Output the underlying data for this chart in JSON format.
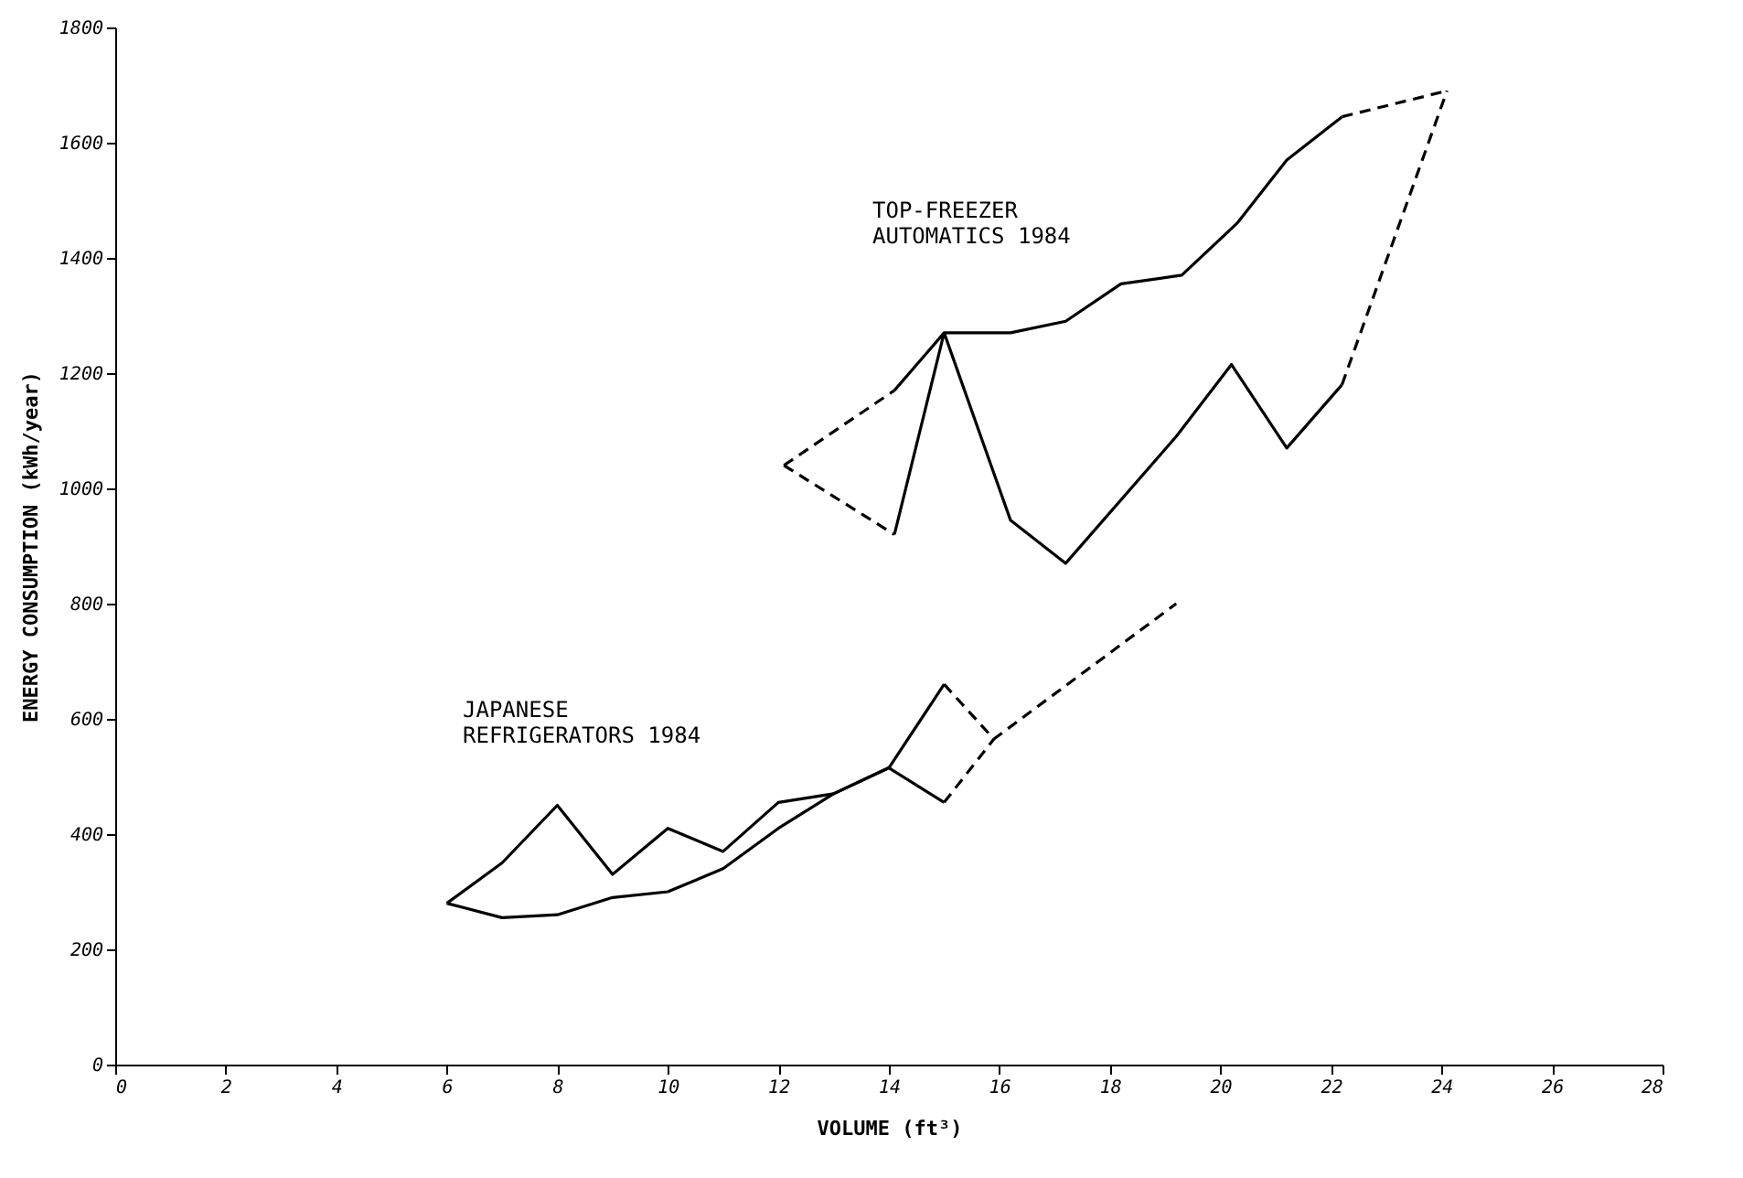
{
  "chart_data": {
    "type": "line",
    "xlabel": "VOLUME (ft³)",
    "ylabel": "ENERGY CONSUMPTION (kWh/year)",
    "xlim": [
      0,
      28
    ],
    "xticks": [
      0,
      2,
      4,
      6,
      8,
      10,
      12,
      14,
      16,
      18,
      20,
      22,
      24,
      26,
      28
    ],
    "ylim": [
      0,
      1800
    ],
    "yticks": [
      0,
      200,
      400,
      600,
      800,
      1000,
      1200,
      1400,
      1600,
      1800
    ],
    "grid": false,
    "marker": "none",
    "series": [
      {
        "color": "#000000",
        "line_style": "solid",
        "x": [
          6,
          7,
          8,
          9,
          10,
          11,
          12,
          13,
          14,
          15
        ],
        "values": [
          280,
          350,
          450,
          330,
          410,
          370,
          455,
          470,
          515,
          660
        ]
      },
      {
        "color": "#000000",
        "line_style": "solid",
        "x": [
          6,
          7,
          8,
          9,
          10,
          11,
          12,
          13,
          14,
          15
        ],
        "values": [
          280,
          255,
          260,
          290,
          300,
          340,
          410,
          470,
          515,
          455
        ]
      },
      {
        "color": "#000000",
        "line_style": "dashed",
        "x": [
          15,
          15.9,
          19.2
        ],
        "values": [
          660,
          565,
          800
        ]
      },
      {
        "color": "#000000",
        "line_style": "dashed",
        "x": [
          15,
          15.9
        ],
        "values": [
          455,
          565
        ]
      },
      {
        "color": "#000000",
        "line_style": "solid",
        "x": [
          14.1,
          15,
          16.2,
          17.2,
          18.2,
          19.3,
          20.3,
          21.2,
          22.2,
          null,
          14.1,
          15,
          16.2,
          17.2,
          19.2,
          20.2,
          21.2,
          22.2
        ],
        "values": [
          1170,
          1270,
          1270,
          1290,
          1355,
          1370,
          1460,
          1570,
          1645,
          null,
          920,
          1270,
          945,
          870,
          1090,
          1215,
          1070,
          1180
        ]
      },
      {
        "color": "#000000",
        "line_style": "dashed",
        "x": [
          12.1,
          14.1
        ],
        "values": [
          1040,
          1170
        ]
      },
      {
        "color": "#000000",
        "line_style": "dashed",
        "x": [
          12.1,
          14.1
        ],
        "values": [
          1040,
          920
        ]
      },
      {
        "color": "#000000",
        "line_style": "dashed",
        "x": [
          22.2,
          24.1
        ],
        "values": [
          1645,
          1690
        ]
      },
      {
        "color": "#000000",
        "line_style": "dashed",
        "x": [
          22.2,
          24.1
        ],
        "values": [
          1180,
          1690
        ]
      }
    ],
    "annotations": [
      "TOP-FREEZER\nAUTOMATICS 1984",
      "JAPANESE\nREFRIGERATORS 1984"
    ]
  }
}
